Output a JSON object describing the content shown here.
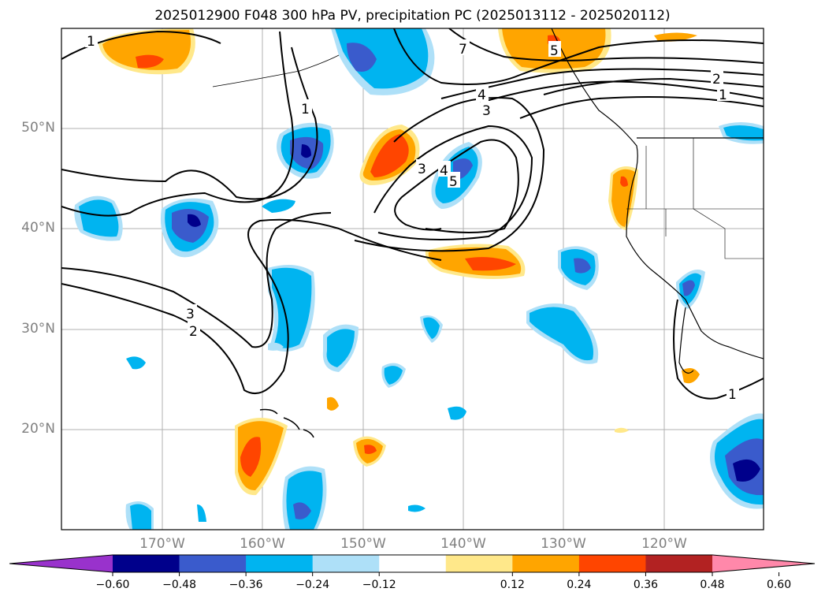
{
  "title": "2025012900 F048 300 hPa PV, precipitation PC (2025013112 - 2025020112)",
  "lat_labels": [
    "50°N",
    "40°N",
    "30°N",
    "20°N"
  ],
  "lon_labels": [
    "170°W",
    "160°W",
    "150°W",
    "140°W",
    "130°W",
    "120°W"
  ],
  "colorbar": {
    "ticks": [
      "−0.60",
      "−0.48",
      "−0.36",
      "−0.24",
      "−0.12",
      "0.12",
      "0.24",
      "0.36",
      "0.48",
      "0.60"
    ],
    "colors": [
      "#9932cc",
      "#00008b",
      "#3a5bcc",
      "#00b4f0",
      "#aee0f8",
      "#ffffff",
      "#ffe88a",
      "#ffa500",
      "#ff4500",
      "#b22222",
      "#ff88aa"
    ]
  },
  "contour_labels": [
    "1",
    "7",
    "5",
    "2",
    "1",
    "4",
    "3",
    "1",
    "3",
    "4",
    "5",
    "3",
    "2",
    "1"
  ],
  "colors": {
    "ocean": "#ffffff",
    "gridline": "#b0b0b0",
    "contour": "#000000",
    "axis_label": "#808080"
  }
}
